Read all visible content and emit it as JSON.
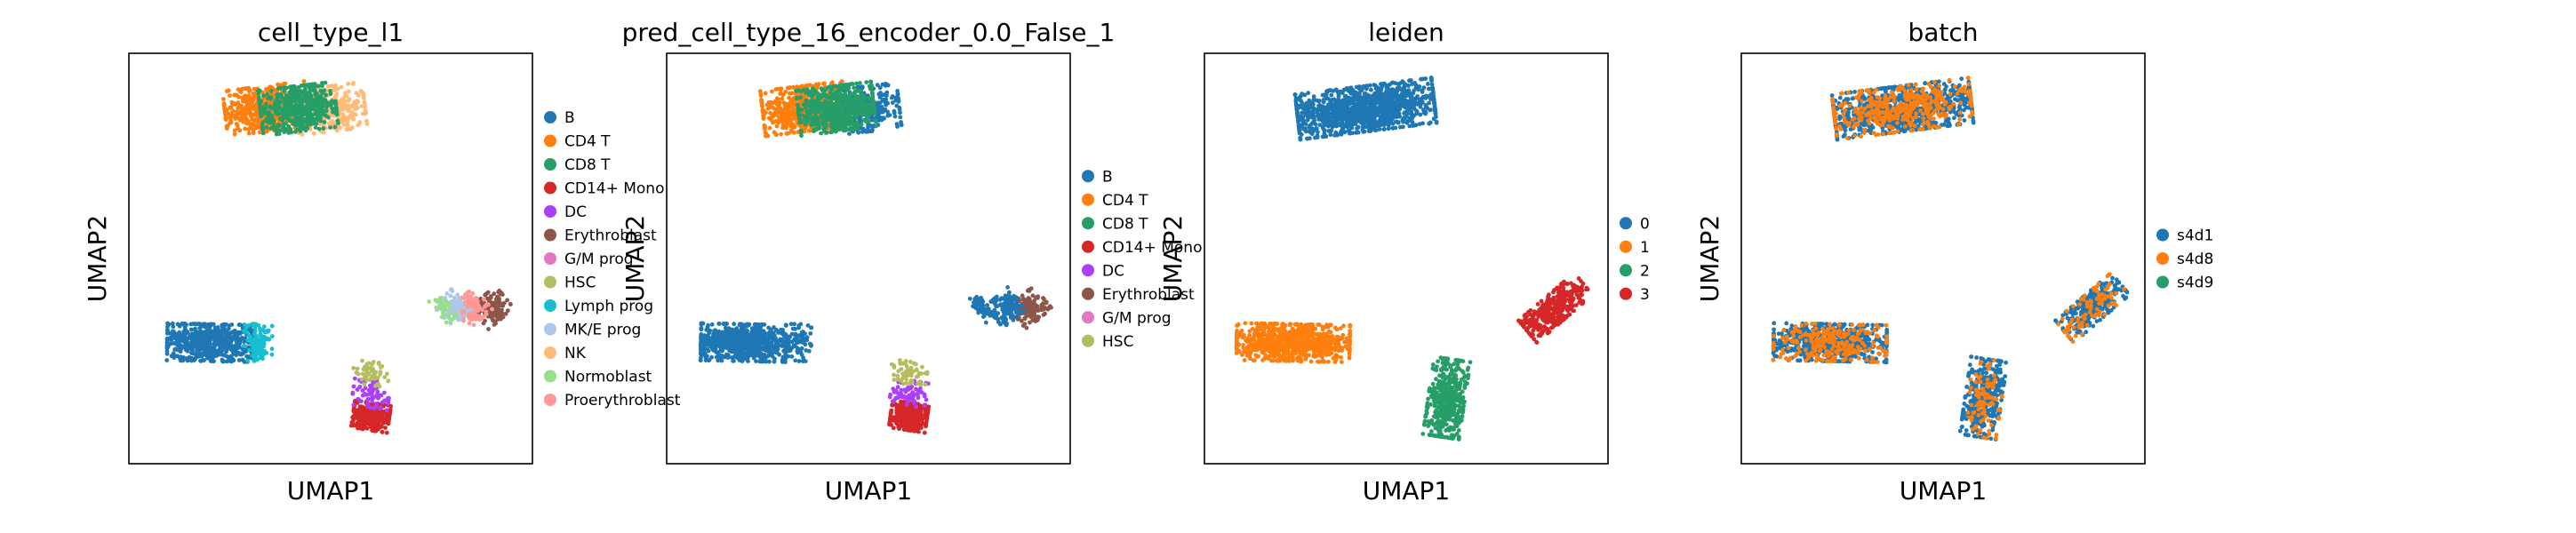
{
  "figure": {
    "panel_count": 4
  },
  "chart_data": [
    {
      "type": "scatter",
      "title": "cell_type_l1",
      "xlabel": "UMAP1",
      "ylabel": "UMAP2",
      "grid": false,
      "ticks": "none",
      "legend_placement": "right",
      "legend": [
        {
          "label": "B",
          "color": "#1f77b4"
        },
        {
          "label": "CD4 T",
          "color": "#ff7f0e"
        },
        {
          "label": "CD8 T",
          "color": "#279e68"
        },
        {
          "label": "CD14+ Mono",
          "color": "#d62728"
        },
        {
          "label": "DC",
          "color": "#aa40fc"
        },
        {
          "label": "Erythroblast",
          "color": "#8c564b"
        },
        {
          "label": "G/M prog",
          "color": "#e377c2"
        },
        {
          "label": "HSC",
          "color": "#b5bd61"
        },
        {
          "label": "Lymph prog",
          "color": "#17becf"
        },
        {
          "label": "MK/E prog",
          "color": "#aec7e8"
        },
        {
          "label": "NK",
          "color": "#ffbb78"
        },
        {
          "label": "Normoblast",
          "color": "#98df8a"
        },
        {
          "label": "Proerythroblast",
          "color": "#ff9896"
        }
      ]
    },
    {
      "type": "scatter",
      "title": "pred_cell_type_16_encoder_0.0_False_1",
      "xlabel": "UMAP1",
      "ylabel": "UMAP2",
      "grid": false,
      "ticks": "none",
      "legend_placement": "right",
      "legend": [
        {
          "label": "B",
          "color": "#1f77b4"
        },
        {
          "label": "CD4 T",
          "color": "#ff7f0e"
        },
        {
          "label": "CD8 T",
          "color": "#279e68"
        },
        {
          "label": "CD14+ Mono",
          "color": "#d62728"
        },
        {
          "label": "DC",
          "color": "#aa40fc"
        },
        {
          "label": "Erythroblast",
          "color": "#8c564b"
        },
        {
          "label": "G/M prog",
          "color": "#e377c2"
        },
        {
          "label": "HSC",
          "color": "#b5bd61"
        }
      ]
    },
    {
      "type": "scatter",
      "title": "leiden",
      "xlabel": "UMAP1",
      "ylabel": "UMAP2",
      "grid": false,
      "ticks": "none",
      "legend_placement": "right",
      "legend": [
        {
          "label": "0",
          "color": "#1f77b4"
        },
        {
          "label": "1",
          "color": "#ff7f0e"
        },
        {
          "label": "2",
          "color": "#279e68"
        },
        {
          "label": "3",
          "color": "#d62728"
        }
      ]
    },
    {
      "type": "scatter",
      "title": "batch",
      "xlabel": "UMAP1",
      "ylabel": "UMAP2",
      "grid": false,
      "ticks": "none",
      "legend_placement": "right",
      "legend": [
        {
          "label": "s4d1",
          "color": "#1f77b4"
        },
        {
          "label": "s4d8",
          "color": "#ff7f0e"
        },
        {
          "label": "s4d9",
          "color": "#279e68"
        }
      ]
    }
  ]
}
